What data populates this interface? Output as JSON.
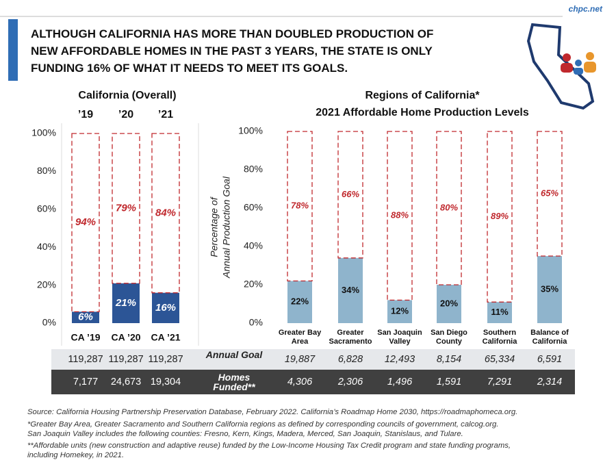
{
  "header": {
    "site": "chpc.net",
    "headline": [
      "ALTHOUGH CALIFORNIA HAS MORE THAN DOUBLED PRODUCTION OF",
      "NEW AFFORDABLE HOMES IN THE PAST 3 YEARS, THE STATE IS ONLY",
      "FUNDING 16% OF WHAT IT NEEDS TO MEET ITS GOALS."
    ]
  },
  "chart_data": [
    {
      "type": "stacked_bar",
      "title": "California (Overall)",
      "column_headers": [
        "’19",
        "’20",
        "’21"
      ],
      "categories": [
        "CA ’19",
        "CA ’20",
        "CA ’21"
      ],
      "series": [
        {
          "color": "#2c5596",
          "label_color": "#ffffff",
          "values": [
            6,
            21,
            16
          ],
          "value_labels": [
            "6%",
            "21%",
            "16%"
          ]
        },
        {
          "color": "#c0282d",
          "dashed": true,
          "label_color": "#c0282d",
          "values": [
            94,
            79,
            84
          ],
          "value_labels": [
            "94%",
            "79%",
            "84%"
          ]
        }
      ],
      "ylim": [
        0,
        100
      ],
      "yticks": [
        {
          "value": 0,
          "label": "0%"
        },
        {
          "value": 20,
          "label": "20%"
        },
        {
          "value": 40,
          "label": "40%"
        },
        {
          "value": 60,
          "label": "60%"
        },
        {
          "value": 80,
          "label": "80%"
        },
        {
          "value": 100,
          "label": "100%"
        }
      ]
    },
    {
      "type": "stacked_bar",
      "title": "Regions of California*",
      "subtitle": "2021 Affordable Home Production Levels",
      "ylabel": [
        "Percentage of",
        "Annual Production Goal"
      ],
      "categories": [
        "Greater Bay Area",
        "Greater Sacramento",
        "San Joaquin Valley",
        "San Diego County",
        "Southern California",
        "Balance of California"
      ],
      "series": [
        {
          "color": "#8fb4cc",
          "label_color": "#111111",
          "values": [
            22,
            34,
            12,
            20,
            11,
            35
          ],
          "value_labels": [
            "22%",
            "34%",
            "12%",
            "20%",
            "11%",
            "35%"
          ]
        },
        {
          "color": "#c0282d",
          "dashed": true,
          "label_color": "#c0282d",
          "values": [
            78,
            66,
            88,
            80,
            89,
            65
          ],
          "value_labels": [
            "78%",
            "66%",
            "88%",
            "80%",
            "89%",
            "65%"
          ]
        }
      ],
      "ylim": [
        0,
        100
      ],
      "yticks": [
        {
          "value": 0,
          "label": "0%"
        },
        {
          "value": 20,
          "label": "20%"
        },
        {
          "value": 40,
          "label": "40%"
        },
        {
          "value": 60,
          "label": "60%"
        },
        {
          "value": 80,
          "label": "80%"
        },
        {
          "value": 100,
          "label": "100%"
        }
      ]
    }
  ],
  "table": {
    "rows": [
      {
        "label": "Annual Goal",
        "values": [
          "119,287",
          "119,287",
          "119,287",
          "19,887",
          "6,828",
          "12,493",
          "8,154",
          "65,334",
          "6,591"
        ]
      },
      {
        "label": "Homes Funded**",
        "values": [
          "7,177",
          "24,673",
          "19,304",
          "4,306",
          "2,306",
          "1,496",
          "1,591",
          "7,291",
          "2,314"
        ]
      }
    ]
  },
  "footnotes": [
    "Source: California Housing Partnership Preservation Database, February 2022. California’s Roadmap Home 2030, https://roadmaphomeca.org.",
    "*Greater Bay Area, Greater Sacramento and Southern California regions as defined by corresponding councils of government, calcog.org.",
    "San Joaquin Valley includes the following counties: Fresno, Kern, Kings, Madera, Merced, San Joaquin, Stanislaus, and Tulare.",
    "**Affordable units (new construction and adaptive reuse) funded by the Low-Income Housing Tax Credit program and state funding programs,",
    "including Homekey, in 2021."
  ]
}
